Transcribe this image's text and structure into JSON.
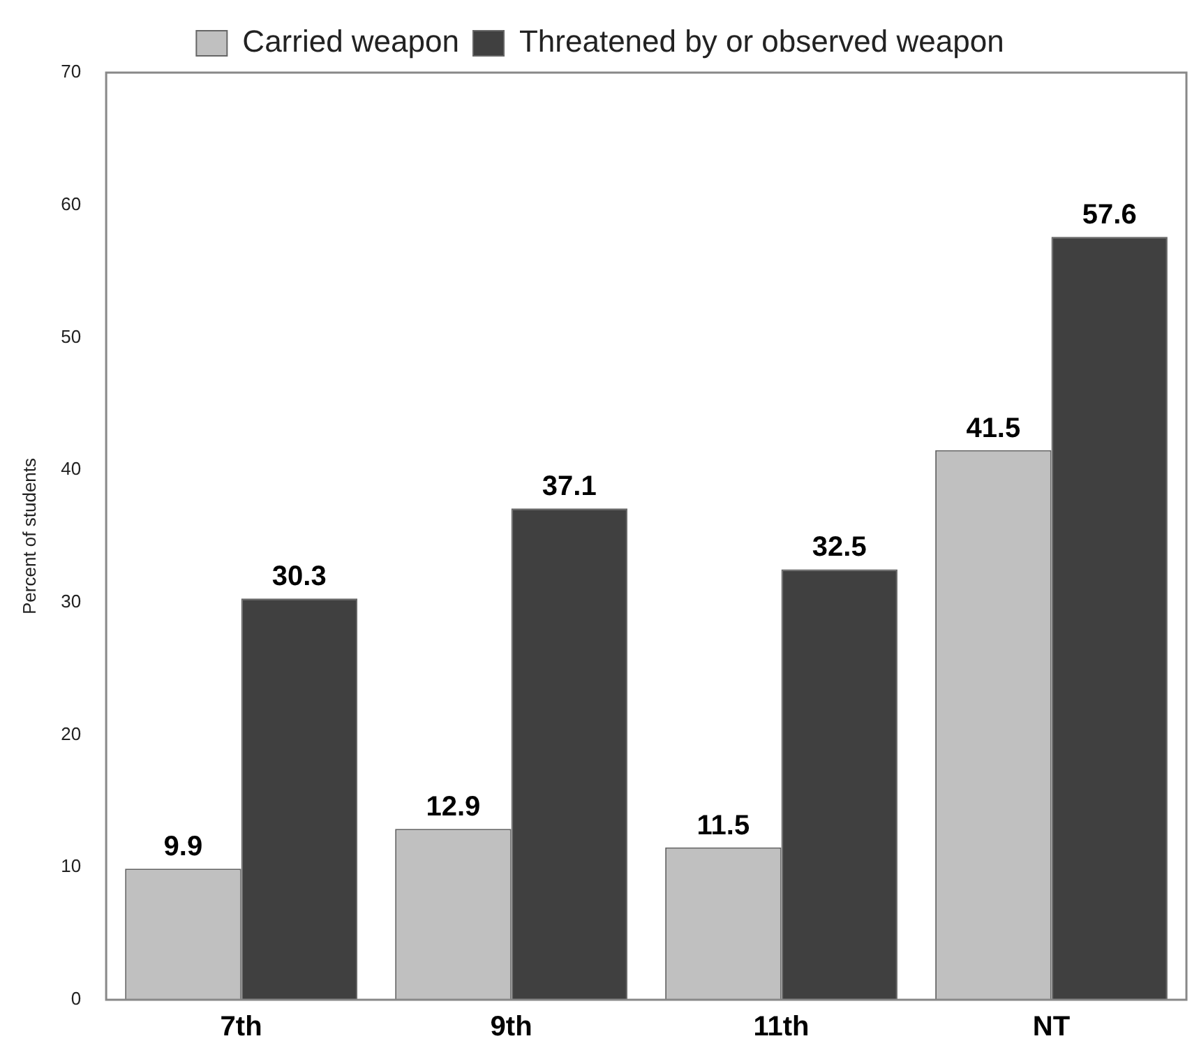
{
  "chart_data": {
    "type": "bar",
    "ylabel": "Percent of students",
    "categories": [
      "7th",
      "9th",
      "11th",
      "NT"
    ],
    "series": [
      {
        "name": "Carried weapon",
        "color": "#c0c0c0",
        "values": [
          9.9,
          12.9,
          11.5,
          41.5
        ]
      },
      {
        "name": "Threatened by or observed weapon",
        "color": "#404040",
        "values": [
          30.3,
          37.1,
          32.5,
          57.6
        ]
      }
    ],
    "ylim": [
      0,
      70
    ],
    "yticks": [
      0,
      10,
      20,
      30,
      40,
      50,
      60,
      70
    ],
    "grid": false,
    "legend": "top",
    "data_labels": true
  }
}
